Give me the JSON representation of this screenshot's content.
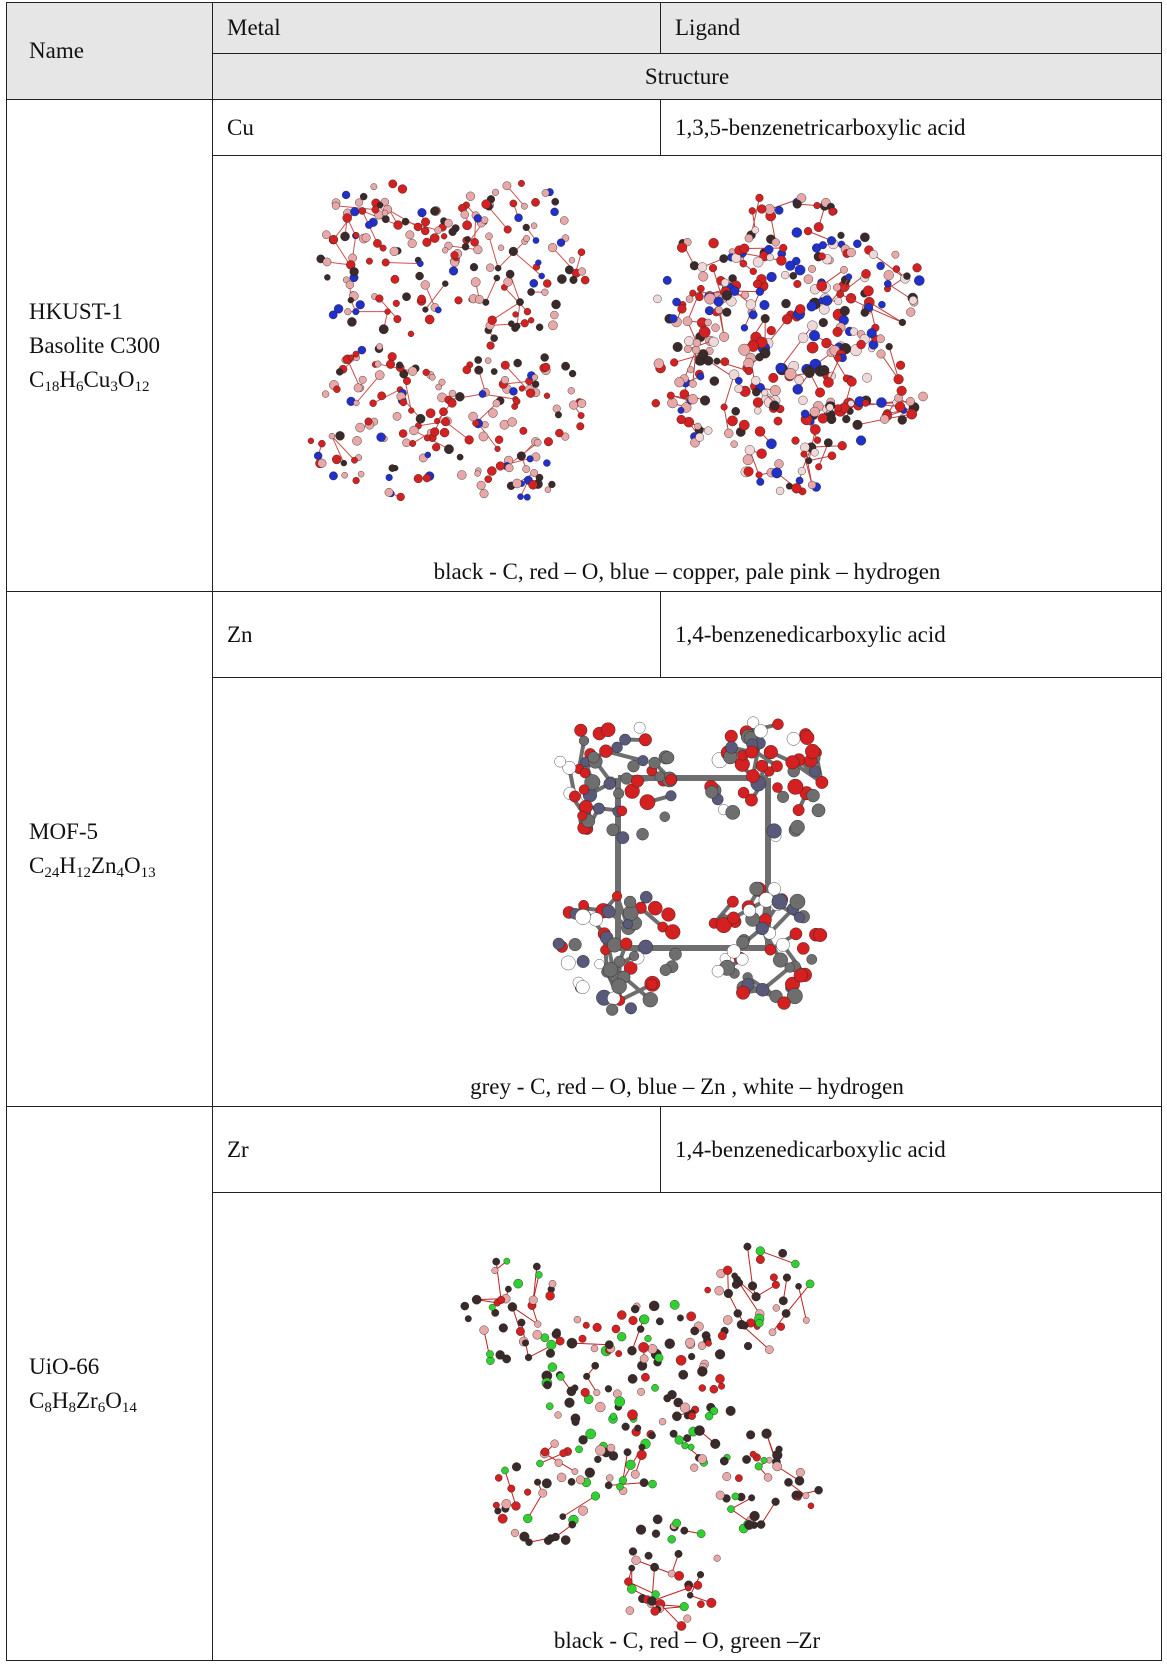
{
  "header": {
    "name": "Name",
    "metal": "Metal",
    "ligand": "Ligand",
    "structure": "Structure"
  },
  "rows": [
    {
      "name_line1": "HKUST-1",
      "name_line2": "Basolite C300",
      "formula": [
        {
          "t": "C"
        },
        {
          "s": "18"
        },
        {
          "t": "H"
        },
        {
          "s": "6"
        },
        {
          "t": "Cu"
        },
        {
          "s": "3"
        },
        {
          "t": "O"
        },
        {
          "s": "12"
        }
      ],
      "metal": "Cu",
      "ligand": "1,3,5-benzenetricarboxylic acid",
      "legend": "black - C, red – O, blue – copper, pale pink – hydrogen"
    },
    {
      "name_line1": "MOF-5",
      "formula": [
        {
          "t": "C"
        },
        {
          "s": "24"
        },
        {
          "t": "H"
        },
        {
          "s": "12"
        },
        {
          "t": "Zn"
        },
        {
          "s": "4"
        },
        {
          "t": "O"
        },
        {
          "s": "13"
        }
      ],
      "metal": "Zn",
      "ligand": "1,4-benzenedicarboxylic acid",
      "legend": "grey - C, red – O, blue – Zn , white – hydrogen"
    },
    {
      "name_line1": "UiO-66",
      "formula": [
        {
          "t": "C"
        },
        {
          "s": "8"
        },
        {
          "t": "H"
        },
        {
          "s": "8"
        },
        {
          "t": "Zr"
        },
        {
          "s": "6"
        },
        {
          "t": "O"
        },
        {
          "s": "14"
        }
      ],
      "metal": "Zr",
      "ligand": "1,4-benzenedicarboxylic acid",
      "legend": "black - C, red – O, green –Zr"
    }
  ],
  "colors": {
    "carbon_black": "#3a2a2a",
    "oxygen_red": "#d42020",
    "copper_blue": "#2030c8",
    "hydrogen_pink": "#e8a8a8",
    "carbon_grey": "#6e6e6e",
    "zinc_blue": "#59597a",
    "zirconium_green": "#30d030",
    "header_bg": "#e6e6e6"
  },
  "figures": {
    "hkust_left": "hkust-1-framework-view-a",
    "hkust_right": "hkust-1-framework-view-b",
    "mof5": "mof-5-framework",
    "uio66": "uio-66-framework"
  }
}
